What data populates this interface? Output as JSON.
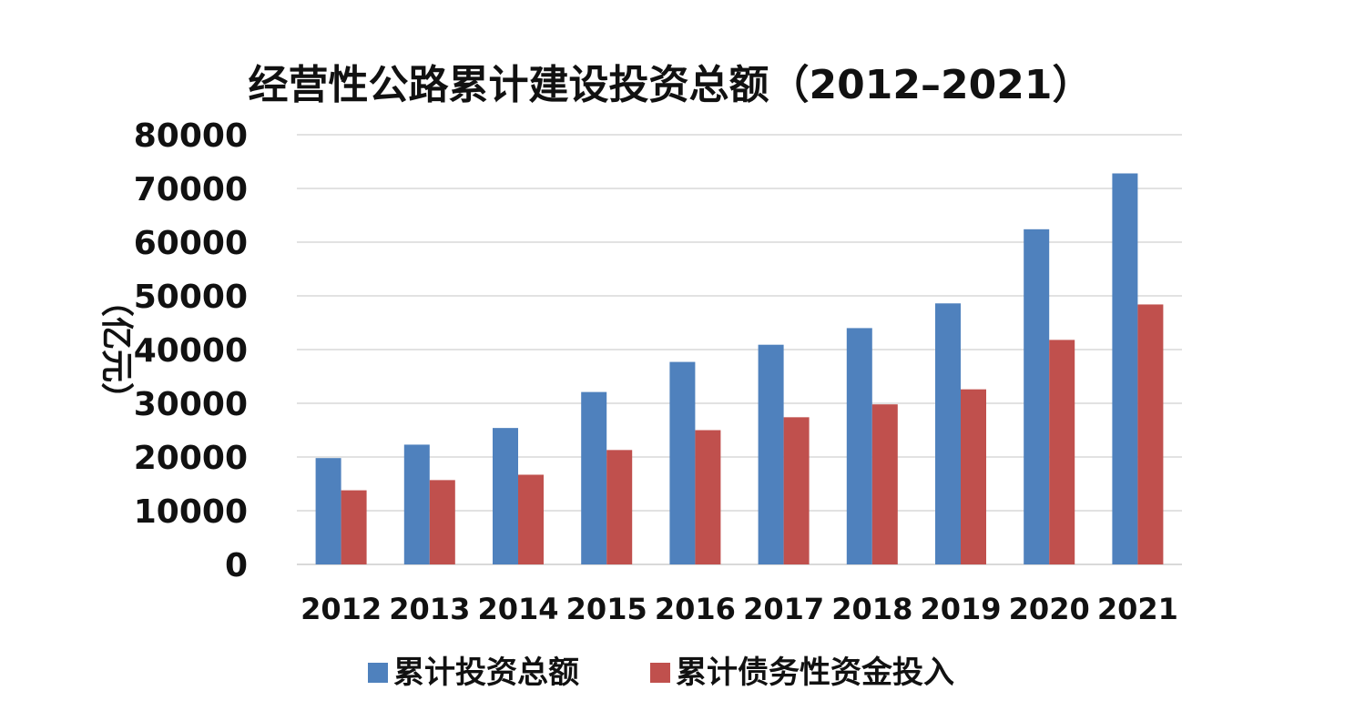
{
  "chart_data": {
    "type": "bar",
    "title": "经营性公路累计建设投资总额（2012–2021）",
    "ylabel": "（亿元）",
    "xlabel": "",
    "categories": [
      "2012",
      "2013",
      "2014",
      "2015",
      "2016",
      "2017",
      "2018",
      "2019",
      "2020",
      "2021"
    ],
    "series": [
      {
        "name": "累计投资总额",
        "color": "#4f81bd",
        "values": [
          19800,
          22300,
          25400,
          32100,
          37700,
          40900,
          44000,
          48600,
          62400,
          72800
        ]
      },
      {
        "name": "累计债务性资金投入",
        "color": "#c0504d",
        "values": [
          13800,
          15700,
          16700,
          21300,
          25000,
          27400,
          29800,
          32600,
          41800,
          48400
        ]
      }
    ],
    "ylim": [
      0,
      80000
    ],
    "yticks": [
      "0",
      "10000",
      "20000",
      "30000",
      "40000",
      "50000",
      "60000",
      "70000",
      "80000"
    ],
    "grid": true,
    "legend_position": "bottom"
  }
}
